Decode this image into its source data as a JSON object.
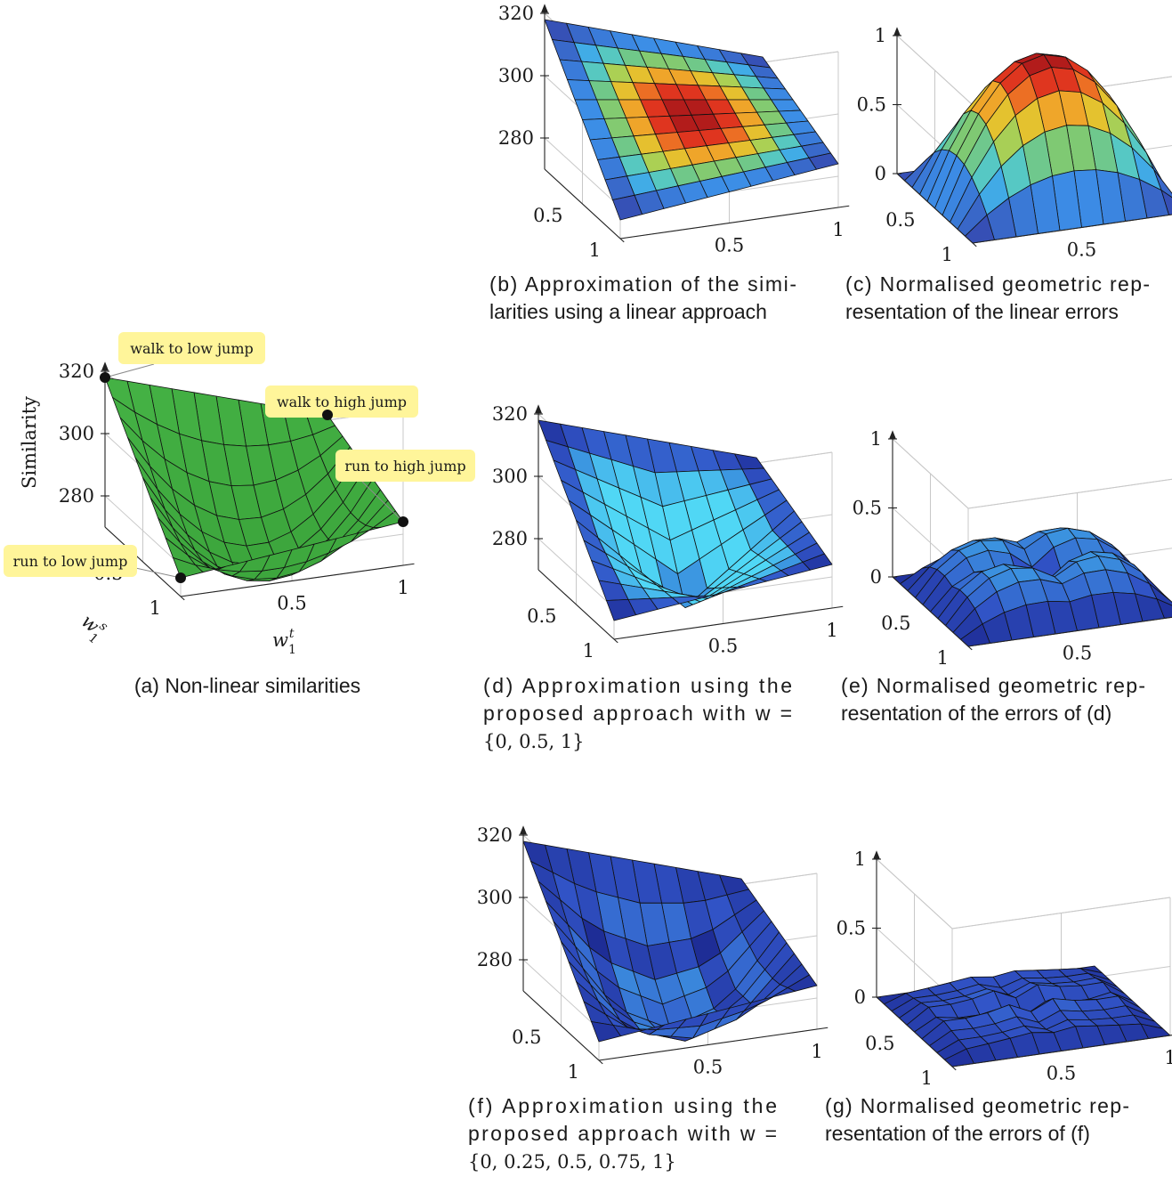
{
  "chart_data": [
    {
      "id": "a",
      "type": "surface",
      "colormap": "green",
      "caption": [
        "(a) Non-linear similarities"
      ],
      "xlabel": "w_1^t",
      "ylabel": "w_1^s",
      "zlabel": "Similarity",
      "z_ticks": [
        "320",
        "300",
        "280"
      ],
      "x_ticks": [
        "0.5",
        "1"
      ],
      "y_ticks": [
        "0.5",
        "1"
      ],
      "zlim": [
        270,
        320
      ],
      "corners": {
        "w00": 318,
        "w10": 296,
        "w01": 276,
        "w11": 284
      },
      "min_value": 264,
      "annotations": [
        {
          "label": "walk to low jump",
          "value": 318
        },
        {
          "label": "walk to high jump",
          "value": 296
        },
        {
          "label": "run to high jump",
          "value": 284
        },
        {
          "label": "run to low jump",
          "value": 276
        }
      ]
    },
    {
      "id": "b",
      "type": "surface",
      "colormap": "jet",
      "caption": [
        "(b) Approximation of the simi-",
        "larities using a linear approach"
      ],
      "z_ticks": [
        "320",
        "300",
        "280"
      ],
      "x_ticks": [
        "0.5",
        "1"
      ],
      "y_ticks": [
        "0.5",
        "1"
      ],
      "zlim": [
        270,
        320
      ]
    },
    {
      "id": "c",
      "type": "surface",
      "colormap": "jet",
      "caption": [
        "(c) Normalised geometric rep-",
        "resentation of the linear errors"
      ],
      "z_ticks": [
        "1",
        "0.5",
        "0"
      ],
      "x_ticks": [
        "0.5",
        "1"
      ],
      "y_ticks": [
        "0.5",
        "1"
      ],
      "zlim": [
        0,
        1
      ]
    },
    {
      "id": "d",
      "type": "surface",
      "colormap": "blue",
      "caption": [
        "(d) Approximation using the",
        "proposed approach with w =",
        "{0, 0.5, 1}"
      ],
      "weights": [
        0,
        0.5,
        1
      ],
      "z_ticks": [
        "320",
        "300",
        "280"
      ],
      "x_ticks": [
        "0.5",
        "1"
      ],
      "y_ticks": [
        "0.5",
        "1"
      ],
      "zlim": [
        270,
        320
      ]
    },
    {
      "id": "e",
      "type": "surface",
      "colormap": "blue",
      "caption": [
        "(e) Normalised geometric rep-",
        "resentation of the errors of (d)"
      ],
      "z_ticks": [
        "1",
        "0.5",
        "0"
      ],
      "x_ticks": [
        "0.5",
        "1"
      ],
      "y_ticks": [
        "0.5",
        "1"
      ],
      "zlim": [
        0,
        1
      ]
    },
    {
      "id": "f",
      "type": "surface",
      "colormap": "blue",
      "caption": [
        "(f) Approximation using the",
        "proposed approach with w =",
        "{0, 0.25, 0.5, 0.75, 1}"
      ],
      "weights": [
        0,
        0.25,
        0.5,
        0.75,
        1
      ],
      "z_ticks": [
        "320",
        "300",
        "280"
      ],
      "x_ticks": [
        "0.5",
        "1"
      ],
      "y_ticks": [
        "0.5",
        "1"
      ],
      "zlim": [
        270,
        320
      ]
    },
    {
      "id": "g",
      "type": "surface",
      "colormap": "blue",
      "caption": [
        "(g) Normalised geometric rep-",
        "resentation of the errors of (f)"
      ],
      "z_ticks": [
        "1",
        "0.5",
        "0"
      ],
      "x_ticks": [
        "0.5",
        "1"
      ],
      "y_ticks": [
        "0.5",
        "1"
      ],
      "zlim": [
        0,
        1
      ]
    }
  ]
}
